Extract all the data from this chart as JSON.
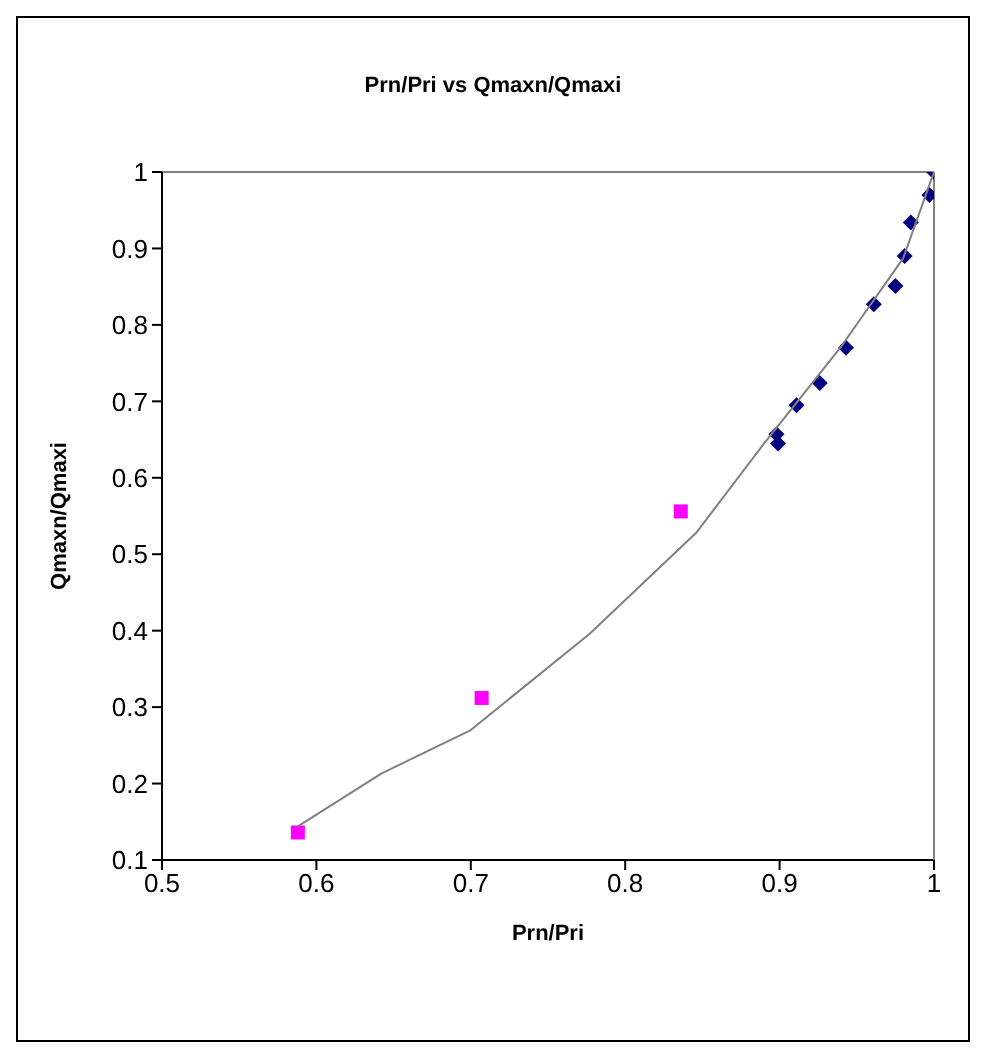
{
  "chart_data": {
    "type": "scatter",
    "title": "Prn/Pri vs Qmaxn/Qmaxi",
    "xlabel": "Prn/Pri",
    "ylabel": "Qmaxn/Qmaxi",
    "xlim": [
      0.5,
      1
    ],
    "xticks": [
      0.5,
      0.6,
      0.7,
      0.8,
      0.9,
      1
    ],
    "ylim": [
      0.1,
      1
    ],
    "yticks": [
      0.1,
      0.2,
      0.3,
      0.4,
      0.5,
      0.6,
      0.7,
      0.8,
      0.9,
      1
    ],
    "series": [
      {
        "color": "#000080",
        "marker": "diamond",
        "x": [
          1.0,
          0.997,
          0.985,
          0.981,
          0.975,
          0.961,
          0.943,
          0.926,
          0.911,
          0.898,
          0.899
        ],
        "values": [
          1.0,
          0.97,
          0.934,
          0.89,
          0.851,
          0.827,
          0.77,
          0.724,
          0.695,
          0.657,
          0.645
        ]
      },
      {
        "color": "#ff00ff",
        "marker": "square",
        "x": [
          0.588,
          0.707,
          0.836
        ],
        "values": [
          0.136,
          0.312,
          0.556
        ]
      },
      {
        "type": "line",
        "color": "#808080",
        "marker": "none",
        "x": [
          0.588,
          0.642,
          0.7,
          0.777,
          0.846,
          0.89,
          0.94,
          0.98,
          1.0
        ],
        "values": [
          0.144,
          0.213,
          0.27,
          0.396,
          0.528,
          0.645,
          0.772,
          0.887,
          1.0
        ]
      }
    ]
  }
}
